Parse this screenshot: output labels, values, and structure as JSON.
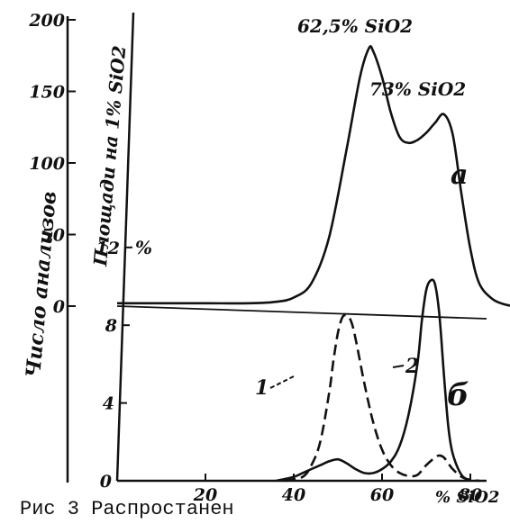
{
  "chart_data": [
    {
      "panel": "а",
      "type": "line",
      "y_axis_label": "Число анализов",
      "y_ticks": [
        "200",
        "150",
        "100",
        "50",
        "0"
      ],
      "y_range": [
        0,
        200
      ],
      "x_range": [
        0,
        90
      ],
      "x_ticks": [
        "20",
        "40",
        "60",
        "80"
      ],
      "x_label": "% SiO2",
      "annotations": [
        "62,5% SiO2",
        "73% SiO2"
      ],
      "series": [
        {
          "x": [
            0,
            10,
            20,
            30,
            36,
            40,
            44,
            48,
            52,
            55,
            57,
            58,
            60,
            62,
            64,
            66,
            68,
            70,
            72,
            74,
            76,
            78,
            80,
            82,
            85,
            88,
            90
          ],
          "values": [
            2,
            2,
            2,
            2,
            3,
            6,
            16,
            48,
            110,
            160,
            180,
            178,
            160,
            135,
            118,
            114,
            116,
            121,
            128,
            134,
            120,
            78,
            40,
            16,
            5,
            1,
            0
          ]
        }
      ]
    },
    {
      "panel": "б",
      "type": "line",
      "y_axis_label": "Площади на 1% SiO2",
      "y_unit": "%",
      "y_ticks": [
        "12",
        "8",
        "4",
        "0"
      ],
      "y_range": [
        0,
        12
      ],
      "x_range": [
        0,
        90
      ],
      "x_ticks": [
        "20",
        "40",
        "60",
        "80"
      ],
      "x_label": "% SiO2",
      "series": [
        {
          "name": "1",
          "style": "dashed",
          "x": [
            38,
            42,
            44,
            46,
            48,
            49,
            50,
            51,
            52,
            53,
            54,
            56,
            58,
            60,
            62,
            64,
            66,
            68,
            70,
            72,
            73,
            74,
            75,
            76,
            78,
            80,
            82
          ],
          "values": [
            0,
            0.2,
            0.8,
            2.0,
            4.5,
            6.2,
            7.6,
            8.4,
            8.5,
            8.2,
            7.3,
            5.0,
            3.0,
            1.6,
            0.8,
            0.4,
            0.25,
            0.3,
            0.8,
            1.2,
            1.3,
            1.2,
            0.9,
            0.6,
            0.2,
            0.05,
            0
          ]
        },
        {
          "name": "2",
          "style": "solid",
          "x": [
            36,
            40,
            42,
            44,
            46,
            48,
            50,
            52,
            54,
            56,
            58,
            60,
            62,
            64,
            66,
            68,
            69,
            70,
            71,
            72,
            73,
            74,
            75,
            76,
            78,
            80
          ],
          "values": [
            0,
            0.2,
            0.4,
            0.6,
            0.8,
            1.0,
            1.1,
            0.9,
            0.6,
            0.4,
            0.4,
            0.6,
            1.0,
            1.8,
            3.4,
            6.0,
            8.2,
            9.8,
            10.3,
            10.1,
            8.5,
            5.5,
            2.8,
            1.4,
            0.3,
            0
          ]
        }
      ],
      "series_labels": [
        "1",
        "2"
      ],
      "panel_label": "б"
    }
  ],
  "caption": "Рис 3 Распростанен"
}
